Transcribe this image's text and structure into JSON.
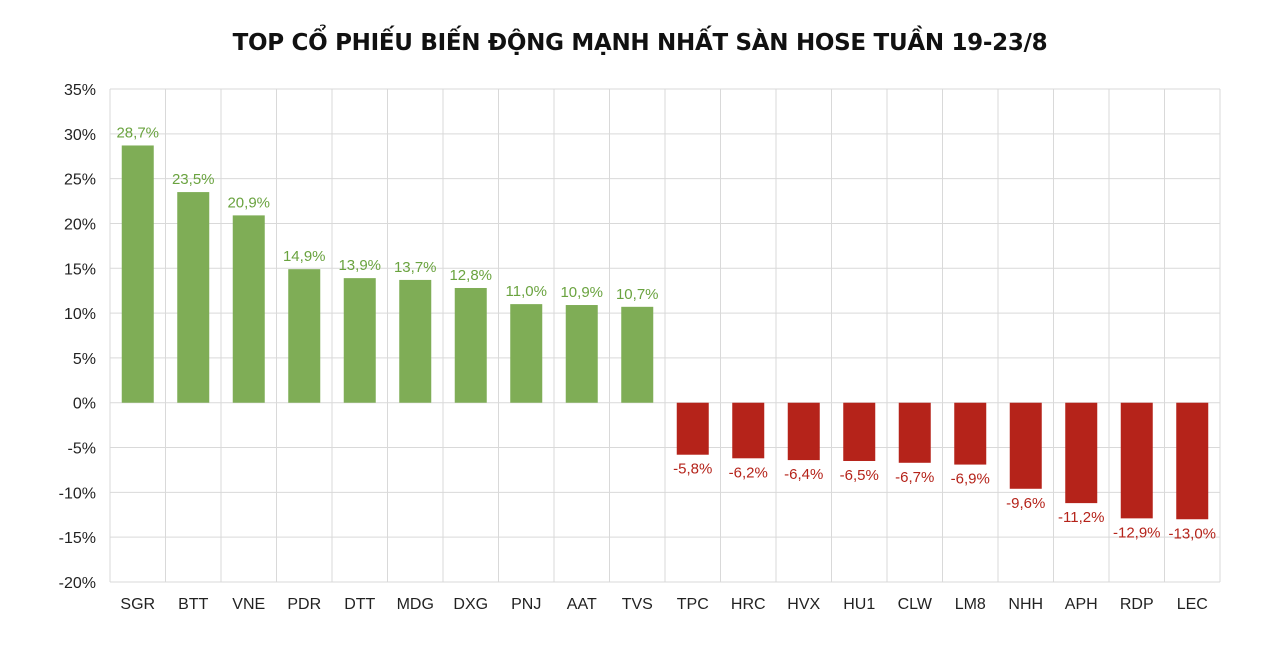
{
  "chart_data": {
    "type": "bar",
    "title": "TOP CỔ PHIẾU BIẾN ĐỘNG MẠNH NHẤT SÀN HOSE TUẦN 19-23/8",
    "xlabel": "",
    "ylabel": "",
    "ylim": [
      -20,
      35
    ],
    "y_ticks": [
      35,
      30,
      25,
      20,
      15,
      10,
      5,
      0,
      -5,
      -10,
      -15,
      -20
    ],
    "y_tick_labels": [
      "35%",
      "30%",
      "25%",
      "20%",
      "15%",
      "10%",
      "5%",
      "0%",
      "-5%",
      "-10%",
      "-15%",
      "-20%"
    ],
    "categories": [
      "SGR",
      "BTT",
      "VNE",
      "PDR",
      "DTT",
      "MDG",
      "DXG",
      "PNJ",
      "AAT",
      "TVS",
      "TPC",
      "HRC",
      "HVX",
      "HU1",
      "CLW",
      "LM8",
      "NHH",
      "APH",
      "RDP",
      "LEC"
    ],
    "values": [
      28.7,
      23.5,
      20.9,
      14.9,
      13.9,
      13.7,
      12.8,
      11.0,
      10.9,
      10.7,
      -5.8,
      -6.2,
      -6.4,
      -6.5,
      -6.7,
      -6.9,
      -9.6,
      -11.2,
      -12.9,
      -13.0
    ],
    "data_labels": [
      "28,7%",
      "23,5%",
      "20,9%",
      "14,9%",
      "13,9%",
      "13,7%",
      "12,8%",
      "11,0%",
      "10,9%",
      "10,7%",
      "-5,8%",
      "-6,2%",
      "-6,4%",
      "-6,5%",
      "-6,7%",
      "-6,9%",
      "-9,6%",
      "-11,2%",
      "-12,9%",
      "-13,0%"
    ],
    "grid": true,
    "legend": "none",
    "colors": {
      "positive_bar": "#7fad56",
      "positive_label": "#6aa33f",
      "negative_bar": "#b5231a",
      "negative_label": "#b5231a",
      "grid": "#d9d9d9",
      "text": "#222222"
    }
  }
}
